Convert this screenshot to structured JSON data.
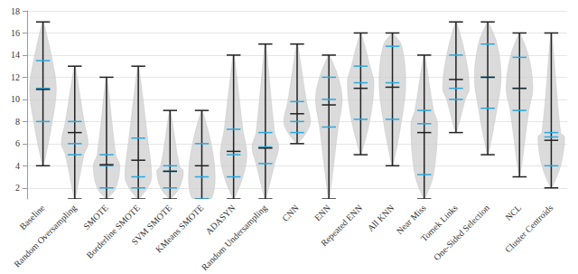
{
  "chart_data": {
    "type": "violin",
    "categories": [
      "Baseline",
      "Random Oversampling",
      "SMOTE",
      "Borderline SMOTE",
      "SVM SMOTE",
      "KMeans SMOTE",
      "ADASYN",
      "Random Undersampling",
      "CNN",
      "ENN",
      "Repeated ENN",
      "All KNN",
      "Near Miss",
      "Tomek Links",
      "One-Sided Selection",
      "NCL",
      "Cluster Centroids"
    ],
    "min": [
      4,
      1,
      1,
      1,
      1,
      1,
      1,
      1,
      6,
      1,
      5,
      4,
      1,
      7,
      5,
      3,
      2
    ],
    "max": [
      17,
      13,
      12,
      13,
      9,
      9,
      14,
      15,
      15,
      14,
      16,
      16,
      14,
      17,
      17,
      16,
      16
    ],
    "q1": [
      8,
      5,
      2,
      2,
      2,
      1,
      3,
      4.2,
      7,
      7.5,
      8.2,
      8.2,
      3.2,
      10,
      9.2,
      9,
      4
    ],
    "median": [
      11,
      6,
      4,
      3,
      3.5,
      3,
      5,
      5.7,
      8,
      10,
      11.5,
      11.5,
      7.8,
      11,
      12,
      11,
      6.6
    ],
    "q3": [
      13.5,
      8,
      5,
      6.5,
      4,
      6,
      7.3,
      7,
      9.8,
      12,
      13,
      14.8,
      9,
      14,
      15,
      13.8,
      7
    ],
    "mean": [
      10.9,
      7,
      4.1,
      4.5,
      3.5,
      4,
      5.3,
      5.6,
      8.7,
      9.5,
      11,
      11.1,
      7,
      11.8,
      12,
      11,
      6.3
    ],
    "color": "#cfcfcf",
    "ylim": [
      1,
      18
    ],
    "yticks": [
      2,
      4,
      6,
      8,
      10,
      12,
      14,
      16,
      18
    ],
    "grid": true
  }
}
